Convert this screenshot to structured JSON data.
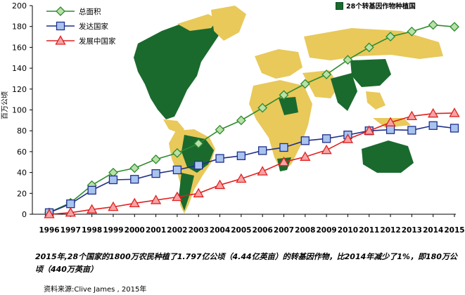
{
  "colors": {
    "gm_country": "#1a6a2e",
    "land": "#e8c95a",
    "total": "#2e8b2e",
    "industrial": "#1f2f8a",
    "developing": "#e02020"
  },
  "map_legend": "28个转基因作物种植国",
  "caption": {
    "part1": "2015年,28个国家的1800万农民种植了1.797亿公顷（4.44亿英亩）的转基因作物，比2014年减少了1%，即180万公顷（440万英亩）"
  },
  "source": "资料来源:Clive James , 2015年",
  "chart_data": {
    "type": "line",
    "ylabel": "百万公顷",
    "ylim": [
      0,
      200
    ],
    "yticks": [
      0,
      20,
      40,
      60,
      80,
      100,
      120,
      140,
      160,
      180,
      200
    ],
    "x": [
      "1996",
      "1997",
      "1998",
      "1999",
      "2000",
      "2001",
      "2002",
      "2003",
      "2004",
      "2005",
      "2006",
      "2007",
      "2008",
      "2009",
      "2010",
      "2011",
      "2012",
      "2013",
      "2014",
      "2015"
    ],
    "series": [
      {
        "name": "总面积",
        "marker": "diamond",
        "color": "#2e8b2e",
        "values": [
          1.7,
          11,
          27.8,
          39.9,
          44.2,
          52.6,
          58.7,
          67.7,
          81,
          90,
          102,
          114.3,
          125,
          134,
          148,
          160,
          170.3,
          175.2,
          181.5,
          179.7
        ]
      },
      {
        "name": "发达国家",
        "marker": "square",
        "color": "#1f2f8a",
        "values": [
          1.5,
          10,
          23,
          33,
          33.5,
          39,
          42.5,
          47,
          53.5,
          56,
          61,
          64,
          70.5,
          72.5,
          76,
          80,
          81,
          80.5,
          85,
          82.5
        ]
      },
      {
        "name": "发展中国家",
        "marker": "triangle",
        "color": "#e02020",
        "values": [
          0,
          1.5,
          4.5,
          7,
          10.5,
          13.5,
          16.5,
          20,
          28,
          34,
          41,
          50,
          55,
          61.5,
          72,
          80,
          88,
          94,
          96.5,
          97
        ]
      }
    ]
  }
}
